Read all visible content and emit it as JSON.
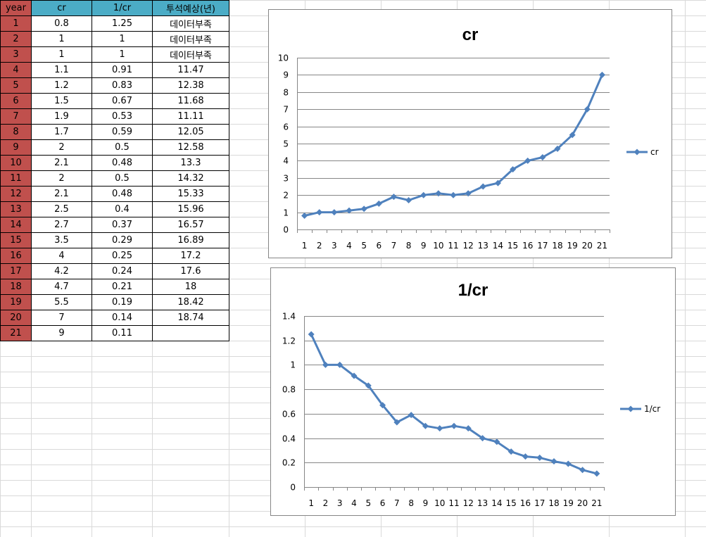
{
  "table": {
    "headers": [
      "year",
      "cr",
      "1/cr",
      "투석예상(년)"
    ],
    "rows": [
      [
        "1",
        "0.8",
        "1.25",
        "데이터부족"
      ],
      [
        "2",
        "1",
        "1",
        "데이터부족"
      ],
      [
        "3",
        "1",
        "1",
        "데이터부족"
      ],
      [
        "4",
        "1.1",
        "0.91",
        "11.47"
      ],
      [
        "5",
        "1.2",
        "0.83",
        "12.38"
      ],
      [
        "6",
        "1.5",
        "0.67",
        "11.68"
      ],
      [
        "7",
        "1.9",
        "0.53",
        "11.11"
      ],
      [
        "8",
        "1.7",
        "0.59",
        "12.05"
      ],
      [
        "9",
        "2",
        "0.5",
        "12.58"
      ],
      [
        "10",
        "2.1",
        "0.48",
        "13.3"
      ],
      [
        "11",
        "2",
        "0.5",
        "14.32"
      ],
      [
        "12",
        "2.1",
        "0.48",
        "15.33"
      ],
      [
        "13",
        "2.5",
        "0.4",
        "15.96"
      ],
      [
        "14",
        "2.7",
        "0.37",
        "16.57"
      ],
      [
        "15",
        "3.5",
        "0.29",
        "16.89"
      ],
      [
        "16",
        "4",
        "0.25",
        "17.2"
      ],
      [
        "17",
        "4.2",
        "0.24",
        "17.6"
      ],
      [
        "18",
        "4.7",
        "0.21",
        "18"
      ],
      [
        "19",
        "5.5",
        "0.19",
        "18.42"
      ],
      [
        "20",
        "7",
        "0.14",
        "18.74"
      ],
      [
        "21",
        "9",
        "0.11",
        ""
      ]
    ]
  },
  "colors": {
    "header_cyan": "#4bacc6",
    "year_red": "#c0504d",
    "series_blue": "#4f81bd",
    "gridline": "#868686"
  },
  "chart_data": [
    {
      "type": "line",
      "title": "cr",
      "categories": [
        "1",
        "2",
        "3",
        "4",
        "5",
        "6",
        "7",
        "8",
        "9",
        "10",
        "11",
        "12",
        "13",
        "14",
        "15",
        "16",
        "17",
        "18",
        "19",
        "20",
        "21"
      ],
      "series": [
        {
          "name": "cr",
          "values": [
            0.8,
            1,
            1,
            1.1,
            1.2,
            1.5,
            1.9,
            1.7,
            2,
            2.1,
            2,
            2.1,
            2.5,
            2.7,
            3.5,
            4,
            4.2,
            4.7,
            5.5,
            7,
            9
          ]
        }
      ],
      "ylim": [
        0,
        10
      ],
      "yticks": [
        "0",
        "1",
        "2",
        "3",
        "4",
        "5",
        "6",
        "7",
        "8",
        "9",
        "10"
      ],
      "grid": true,
      "legend": "right",
      "marker": "diamond"
    },
    {
      "type": "line",
      "title": "1/cr",
      "categories": [
        "1",
        "2",
        "3",
        "4",
        "5",
        "6",
        "7",
        "8",
        "9",
        "10",
        "11",
        "12",
        "13",
        "14",
        "15",
        "16",
        "17",
        "18",
        "19",
        "20",
        "21"
      ],
      "series": [
        {
          "name": "1/cr",
          "values": [
            1.25,
            1,
            1,
            0.91,
            0.83,
            0.67,
            0.53,
            0.59,
            0.5,
            0.48,
            0.5,
            0.48,
            0.4,
            0.37,
            0.29,
            0.25,
            0.24,
            0.21,
            0.19,
            0.14,
            0.11
          ]
        }
      ],
      "ylim": [
        0,
        1.4
      ],
      "yticks": [
        "0",
        "0.2",
        "0.4",
        "0.6",
        "0.8",
        "1",
        "1.2",
        "1.4"
      ],
      "grid": true,
      "legend": "right",
      "marker": "diamond"
    }
  ]
}
